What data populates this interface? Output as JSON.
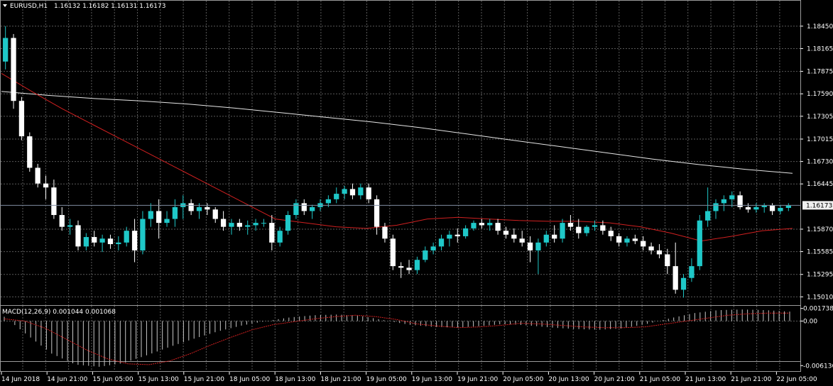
{
  "colors": {
    "background": "#000000",
    "grid": "#5a5a5a",
    "bull": "#1fc8c8",
    "bear": "#ffffff",
    "ma_fast": "#d02020",
    "ma_slow": "#e6e6e6",
    "macd_hist": "#c8c8c8",
    "macd_signal": "#d02020",
    "axis_text": "#ffffff"
  },
  "header": {
    "dropdown_icon": "triangle-down-icon",
    "symbol": "EURUSD,H1",
    "ohlc": "1.16132 1.16182 1.16131 1.16173"
  },
  "macd_header": "MACD(12,26,9) 0.001044 0.001068",
  "current_price": "1.16173",
  "price_axis": [
    "1.18450",
    "1.18165",
    "1.17875",
    "1.17590",
    "1.17305",
    "1.17015",
    "1.16730",
    "1.16445",
    "1.15870",
    "1.15585",
    "1.15295",
    "1.15010"
  ],
  "macd_axis": [
    "0.001738",
    "0.00",
    "-0.006136"
  ],
  "time_axis": [
    "14 Jun 2018",
    "14 Jun 21:00",
    "15 Jun 05:00",
    "15 Jun 13:00",
    "15 Jun 21:00",
    "18 Jun 05:00",
    "18 Jun 13:00",
    "18 Jun 21:00",
    "19 Jun 05:00",
    "19 Jun 13:00",
    "19 Jun 21:00",
    "20 Jun 05:00",
    "20 Jun 13:00",
    "20 Jun 21:00",
    "21 Jun 05:00",
    "21 Jun 13:00",
    "21 Jun 21:00",
    "22 Jun 05:00"
  ],
  "chart_data": {
    "type": "candlestick",
    "price_range": [
      1.1495,
      1.1862
    ],
    "macd_range": [
      -0.0066,
      0.002
    ],
    "ma_fast": [
      1.1785,
      1.1762,
      1.174,
      1.172,
      1.17,
      1.168,
      1.166,
      1.164,
      1.162,
      1.16,
      1.1595,
      1.159,
      1.1588,
      1.1592,
      1.16,
      1.1602,
      1.16,
      1.1598,
      1.1597,
      1.1597,
      1.1595,
      1.159,
      1.1582,
      1.1572,
      1.1578,
      1.1585,
      1.1588
    ],
    "ma_slow": [
      1.1762,
      1.1757,
      1.1753,
      1.175,
      1.1746,
      1.1741,
      1.1735,
      1.1729,
      1.1723,
      1.1716,
      1.1708,
      1.17,
      1.1692,
      1.1684,
      1.1676,
      1.1669,
      1.1663,
      1.1658
    ],
    "macd_signal": [
      0.0003,
      0.0,
      -0.001,
      -0.0025,
      -0.004,
      -0.0052,
      -0.0059,
      -0.006,
      -0.0055,
      -0.0045,
      -0.0033,
      -0.0022,
      -0.0012,
      -0.0005,
      -0.0001,
      0.0003,
      0.0006,
      0.0008,
      0.0006,
      0.0002,
      -0.0004,
      -0.0007,
      -0.0009,
      -0.0008,
      -0.0006,
      -0.0003,
      -0.0004,
      -0.0006,
      -0.0008,
      -0.0009,
      -0.0009,
      -0.0008,
      -0.0004,
      0.0,
      0.0004,
      0.0008,
      0.001,
      0.0011,
      0.0011
    ],
    "macd_hist_envelope": [
      0.0006,
      -0.002,
      -0.0045,
      -0.006,
      -0.0063,
      -0.0058,
      -0.0047,
      -0.0035,
      -0.0024,
      -0.0014,
      -0.0006,
      0.0,
      0.0005,
      0.0008,
      0.0009,
      0.0007,
      0.0001,
      -0.0005,
      -0.0008,
      -0.0009,
      -0.0007,
      -0.0004,
      -0.0006,
      -0.0009,
      -0.0011,
      -0.0012,
      -0.001,
      -0.0004,
      0.0004,
      0.0011,
      0.0015,
      0.0016,
      0.0015,
      0.0013
    ],
    "candles": [
      [
        1.18,
        1.1845,
        1.179,
        1.183
      ],
      [
        1.183,
        1.1835,
        1.174,
        1.175
      ],
      [
        1.175,
        1.1755,
        1.17,
        1.1705
      ],
      [
        1.1705,
        1.171,
        1.166,
        1.1665
      ],
      [
        1.1665,
        1.167,
        1.164,
        1.1645
      ],
      [
        1.1645,
        1.1655,
        1.1625,
        1.164
      ],
      [
        1.164,
        1.165,
        1.16,
        1.1605
      ],
      [
        1.1605,
        1.1615,
        1.1585,
        1.159
      ],
      [
        1.159,
        1.16,
        1.158,
        1.1592
      ],
      [
        1.1592,
        1.1598,
        1.156,
        1.1565
      ],
      [
        1.1565,
        1.1582,
        1.156,
        1.1577
      ],
      [
        1.1577,
        1.1585,
        1.1565,
        1.157
      ],
      [
        1.157,
        1.158,
        1.1558,
        1.1575
      ],
      [
        1.1575,
        1.158,
        1.1562,
        1.1568
      ],
      [
        1.1568,
        1.1578,
        1.156,
        1.157
      ],
      [
        1.157,
        1.159,
        1.1565,
        1.1585
      ],
      [
        1.1585,
        1.16,
        1.1545,
        1.156
      ],
      [
        1.156,
        1.161,
        1.1555,
        1.16
      ],
      [
        1.16,
        1.162,
        1.159,
        1.161
      ],
      [
        1.161,
        1.1625,
        1.1575,
        1.1595
      ],
      [
        1.1595,
        1.161,
        1.159,
        1.16
      ],
      [
        1.16,
        1.1625,
        1.159,
        1.1615
      ],
      [
        1.1615,
        1.163,
        1.16,
        1.162
      ],
      [
        1.162,
        1.1625,
        1.1605,
        1.161
      ],
      [
        1.161,
        1.162,
        1.16,
        1.1615
      ],
      [
        1.1615,
        1.162,
        1.1605,
        1.1612
      ],
      [
        1.1612,
        1.1615,
        1.1595,
        1.16
      ],
      [
        1.16,
        1.161,
        1.1585,
        1.159
      ],
      [
        1.159,
        1.16,
        1.158,
        1.1595
      ],
      [
        1.1595,
        1.16,
        1.1585,
        1.159
      ],
      [
        1.159,
        1.1598,
        1.158,
        1.1592
      ],
      [
        1.1592,
        1.16,
        1.1585,
        1.1595
      ],
      [
        1.1595,
        1.16,
        1.159,
        1.1595
      ],
      [
        1.1595,
        1.1605,
        1.156,
        1.157
      ],
      [
        1.157,
        1.159,
        1.1565,
        1.1585
      ],
      [
        1.1585,
        1.161,
        1.158,
        1.1605
      ],
      [
        1.1605,
        1.1625,
        1.16,
        1.162
      ],
      [
        1.162,
        1.1625,
        1.1605,
        1.161
      ],
      [
        1.161,
        1.1618,
        1.16,
        1.1615
      ],
      [
        1.1615,
        1.1625,
        1.161,
        1.162
      ],
      [
        1.162,
        1.163,
        1.1615,
        1.1625
      ],
      [
        1.1625,
        1.164,
        1.162,
        1.1632
      ],
      [
        1.1632,
        1.1642,
        1.1625,
        1.1638
      ],
      [
        1.1638,
        1.1645,
        1.1625,
        1.163
      ],
      [
        1.163,
        1.1645,
        1.1625,
        1.164
      ],
      [
        1.164,
        1.1645,
        1.162,
        1.1625
      ],
      [
        1.1625,
        1.163,
        1.158,
        1.159
      ],
      [
        1.159,
        1.1595,
        1.157,
        1.1575
      ],
      [
        1.1575,
        1.158,
        1.1535,
        1.154
      ],
      [
        1.154,
        1.1545,
        1.1525,
        1.1538
      ],
      [
        1.1538,
        1.1548,
        1.153,
        1.1535
      ],
      [
        1.1535,
        1.1552,
        1.153,
        1.1548
      ],
      [
        1.1548,
        1.1565,
        1.1545,
        1.156
      ],
      [
        1.156,
        1.157,
        1.1555,
        1.1565
      ],
      [
        1.1565,
        1.158,
        1.156,
        1.1575
      ],
      [
        1.1575,
        1.1585,
        1.1565,
        1.158
      ],
      [
        1.158,
        1.1588,
        1.157,
        1.1578
      ],
      [
        1.1578,
        1.1592,
        1.1575,
        1.1588
      ],
      [
        1.1588,
        1.1598,
        1.1585,
        1.1595
      ],
      [
        1.1595,
        1.16,
        1.1588,
        1.1592
      ],
      [
        1.1592,
        1.16,
        1.1585,
        1.1595
      ],
      [
        1.1595,
        1.16,
        1.158,
        1.1585
      ],
      [
        1.1585,
        1.159,
        1.1575,
        1.158
      ],
      [
        1.158,
        1.1588,
        1.157,
        1.1575
      ],
      [
        1.1575,
        1.1585,
        1.1565,
        1.157
      ],
      [
        1.157,
        1.1578,
        1.1545,
        1.156
      ],
      [
        1.156,
        1.1575,
        1.153,
        1.157
      ],
      [
        1.157,
        1.1585,
        1.1565,
        1.158
      ],
      [
        1.158,
        1.1592,
        1.157,
        1.1575
      ],
      [
        1.1575,
        1.16,
        1.157,
        1.1595
      ],
      [
        1.1595,
        1.1605,
        1.1585,
        1.159
      ],
      [
        1.159,
        1.16,
        1.1575,
        1.1582
      ],
      [
        1.1582,
        1.1592,
        1.1578,
        1.159
      ],
      [
        1.159,
        1.1598,
        1.1585,
        1.1592
      ],
      [
        1.1592,
        1.1598,
        1.158,
        1.1585
      ],
      [
        1.1585,
        1.159,
        1.1572,
        1.1578
      ],
      [
        1.1578,
        1.1582,
        1.1565,
        1.157
      ],
      [
        1.157,
        1.1578,
        1.1565,
        1.1575
      ],
      [
        1.1575,
        1.158,
        1.1568,
        1.1572
      ],
      [
        1.1572,
        1.1578,
        1.156,
        1.1565
      ],
      [
        1.1565,
        1.157,
        1.1555,
        1.156
      ],
      [
        1.156,
        1.1568,
        1.155,
        1.1555
      ],
      [
        1.1555,
        1.1562,
        1.153,
        1.154
      ],
      [
        1.154,
        1.157,
        1.1505,
        1.151
      ],
      [
        1.151,
        1.153,
        1.15,
        1.1525
      ],
      [
        1.1525,
        1.155,
        1.152,
        1.154
      ],
      [
        1.154,
        1.1605,
        1.1535,
        1.1598
      ],
      [
        1.1598,
        1.164,
        1.159,
        1.161
      ],
      [
        1.161,
        1.1625,
        1.16,
        1.162
      ],
      [
        1.162,
        1.163,
        1.161,
        1.1625
      ],
      [
        1.1625,
        1.1635,
        1.1615,
        1.163
      ],
      [
        1.163,
        1.1635,
        1.1612,
        1.1615
      ],
      [
        1.1615,
        1.162,
        1.1608,
        1.1612
      ],
      [
        1.1612,
        1.162,
        1.1608,
        1.1615
      ],
      [
        1.1615,
        1.162,
        1.1608,
        1.1617
      ],
      [
        1.1617,
        1.162,
        1.1605,
        1.161
      ],
      [
        1.161,
        1.1618,
        1.1606,
        1.1614
      ],
      [
        1.1614,
        1.162,
        1.161,
        1.1617
      ]
    ]
  }
}
